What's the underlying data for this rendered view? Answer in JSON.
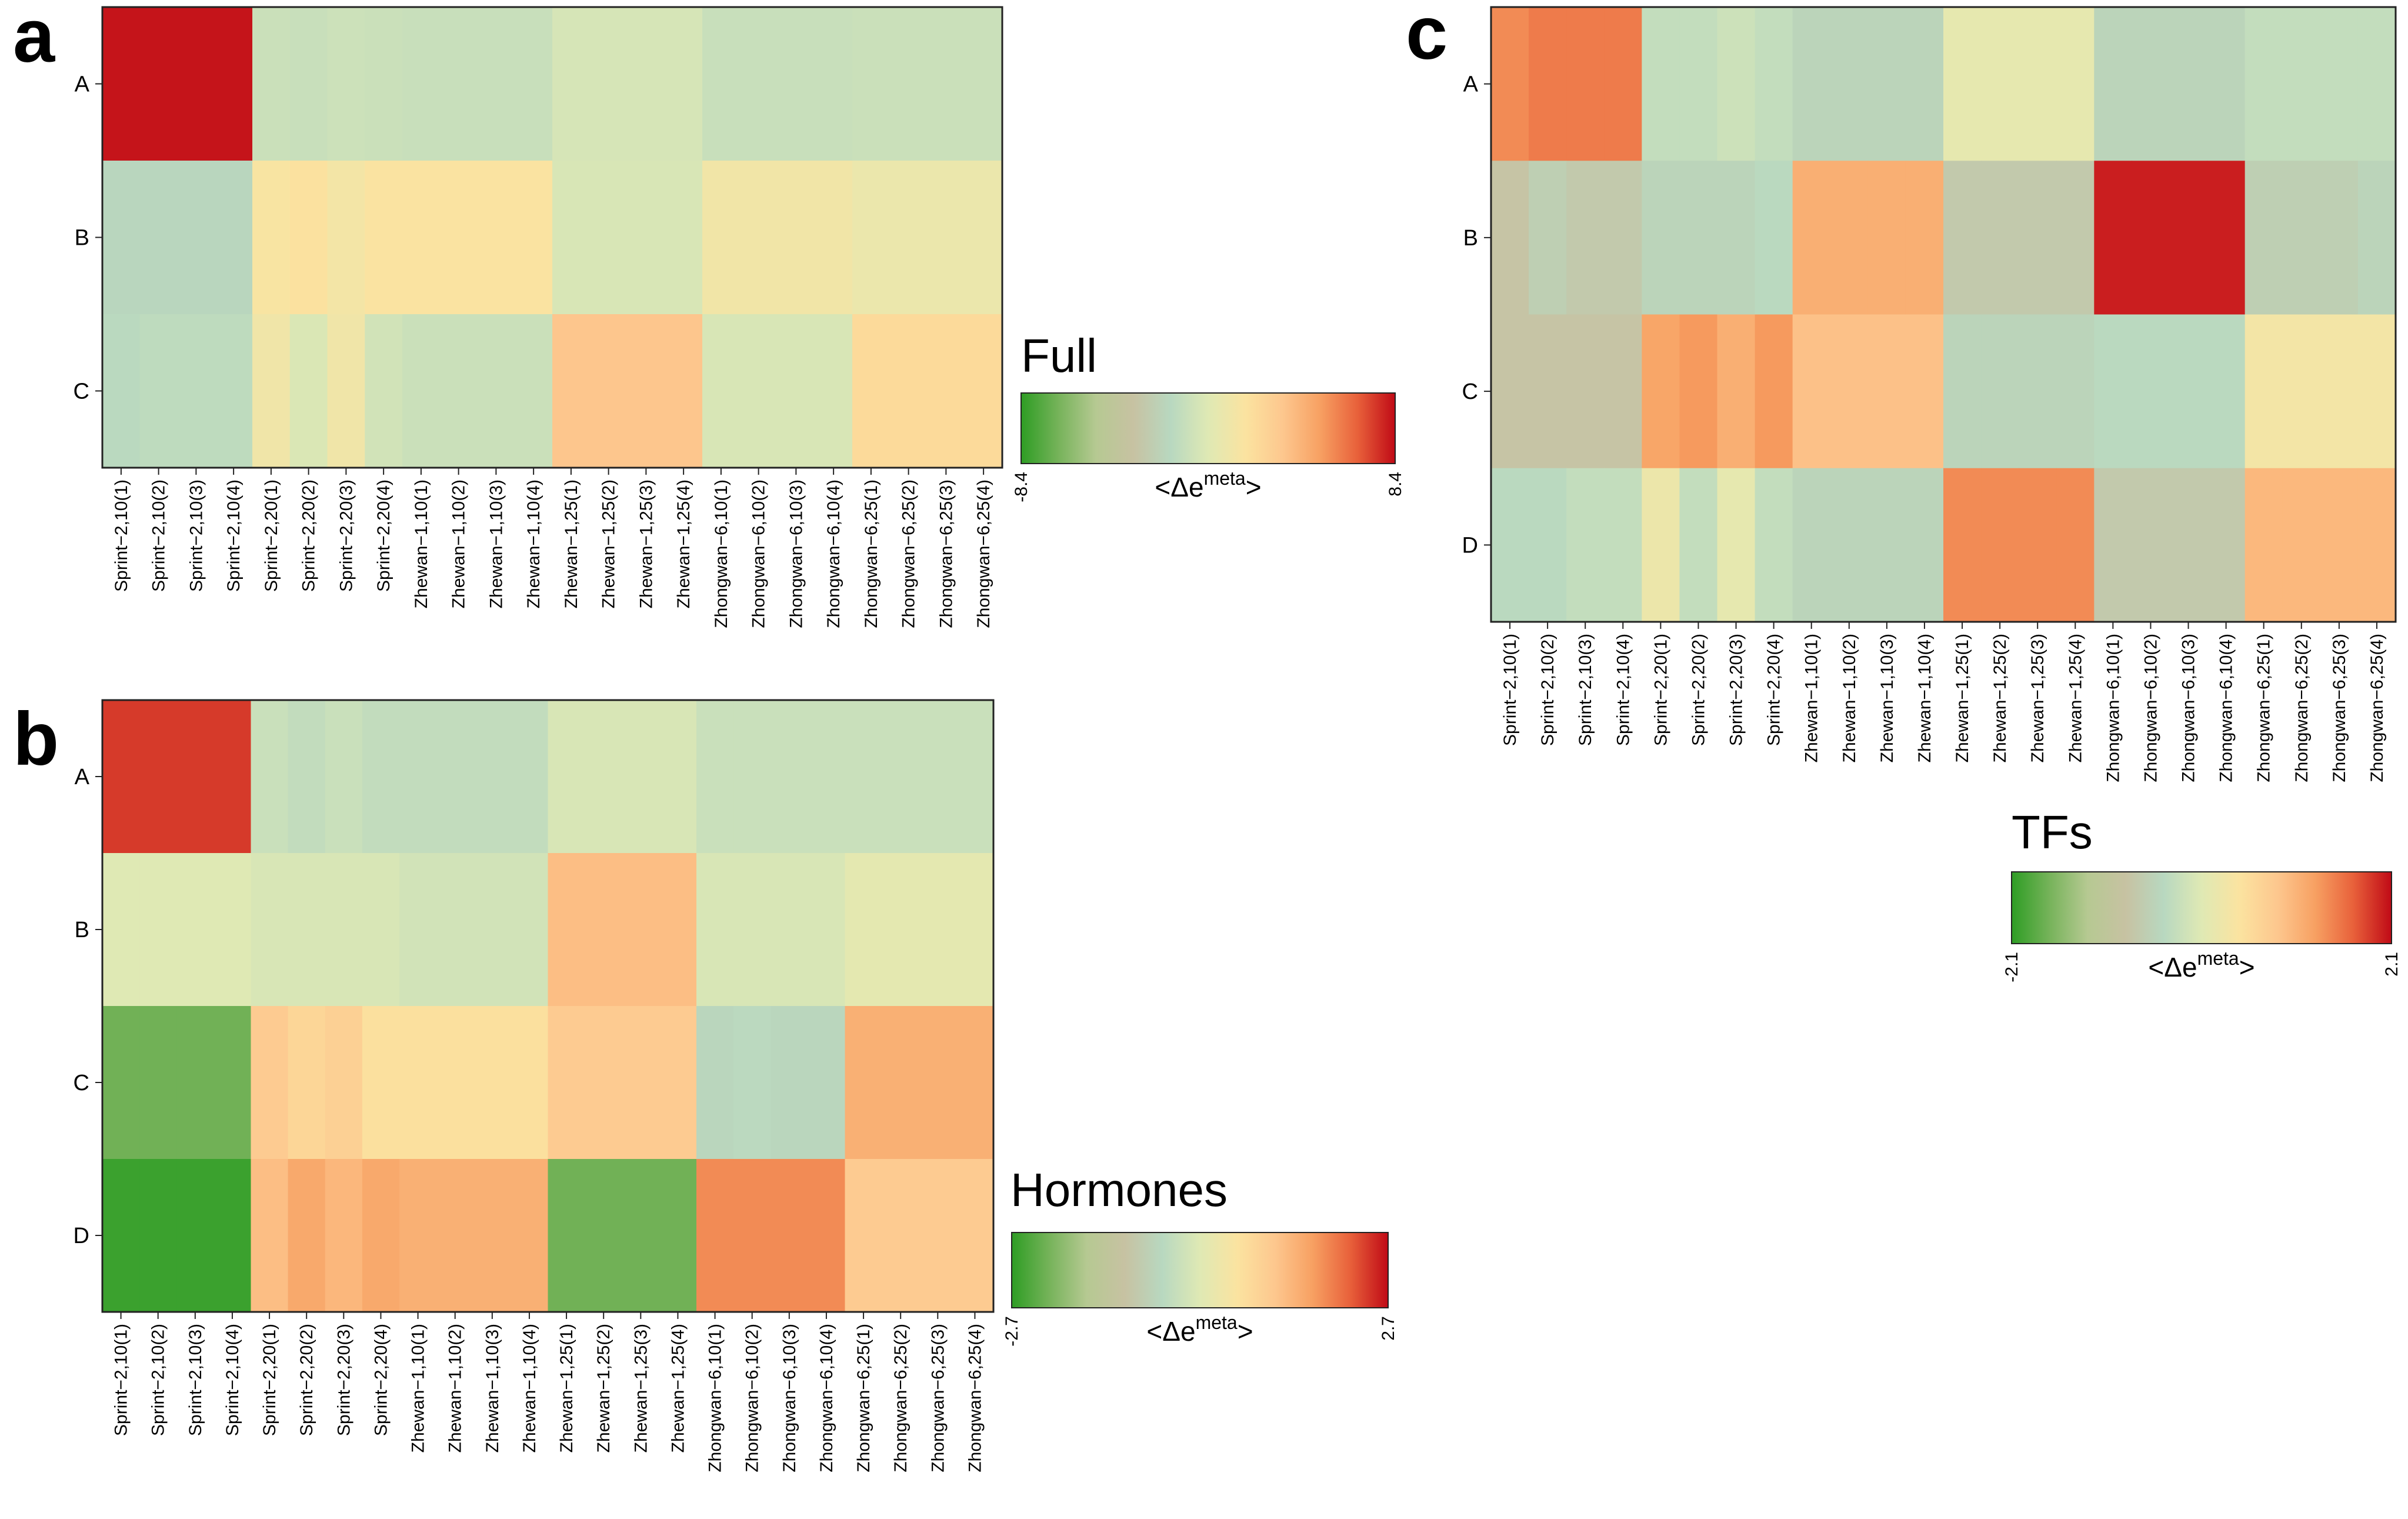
{
  "colors": {
    "low": "#2ca02c",
    "mid": "#d6e4b8",
    "high": "#c00a16",
    "scale": [
      "#2e9d24",
      "#76b35a",
      "#b6c992",
      "#c7c2a2",
      "#b8d8c0",
      "#dfe9b4",
      "#fbe3a0",
      "#fdc78e",
      "#f7a062",
      "#e8603a",
      "#c00a16"
    ]
  },
  "chart_data": [
    {
      "panel": "a",
      "type": "heatmap",
      "title": "Full",
      "legend": {
        "title": "Full",
        "label": "<Δe",
        "label_sup": "meta",
        "label_end": ">",
        "min": -8.4,
        "max": 8.4,
        "min_label": "-8.4",
        "max_label": "8.4"
      },
      "rows": [
        "A",
        "B",
        "C"
      ],
      "columns": [
        "Sprint−2,10(1)",
        "Sprint−2,10(2)",
        "Sprint−2,10(3)",
        "Sprint−2,10(4)",
        "Sprint−2,20(1)",
        "Sprint−2,20(2)",
        "Sprint−2,20(3)",
        "Sprint−2,20(4)",
        "Zhewan−1,10(1)",
        "Zhewan−1,10(2)",
        "Zhewan−1,10(3)",
        "Zhewan−1,10(4)",
        "Zhewan−1,25(1)",
        "Zhewan−1,25(2)",
        "Zhewan−1,25(3)",
        "Zhewan−1,25(4)",
        "Zhongwan−6,10(1)",
        "Zhongwan−6,10(2)",
        "Zhongwan−6,10(3)",
        "Zhongwan−6,10(4)",
        "Zhongwan−6,25(1)",
        "Zhongwan−6,25(2)",
        "Zhongwan−6,25(3)",
        "Zhongwan−6,25(4)"
      ],
      "values": [
        [
          8.2,
          8.2,
          8.2,
          8.2,
          -0.9,
          -1.0,
          -0.8,
          -0.9,
          -1.0,
          -1.0,
          -1.0,
          -1.0,
          -0.4,
          -0.4,
          -0.4,
          -0.4,
          -1.0,
          -1.0,
          -1.0,
          -1.0,
          -0.9,
          -0.9,
          -0.9,
          -0.9
        ],
        [
          -1.8,
          -1.8,
          -1.8,
          -1.8,
          1.5,
          1.8,
          1.2,
          1.6,
          1.6,
          1.6,
          1.6,
          1.6,
          -0.3,
          -0.3,
          -0.3,
          -0.3,
          1.1,
          1.1,
          1.1,
          1.1,
          0.7,
          0.7,
          0.7,
          0.7
        ],
        [
          -1.6,
          -1.4,
          -1.4,
          -1.4,
          1.0,
          -0.2,
          1.0,
          -0.6,
          -0.9,
          -0.9,
          -0.9,
          -0.9,
          3.4,
          3.4,
          3.4,
          3.4,
          -0.3,
          -0.3,
          -0.3,
          -0.3,
          2.2,
          2.2,
          2.2,
          2.2
        ]
      ]
    },
    {
      "panel": "b",
      "type": "heatmap",
      "title": "Hormones",
      "legend": {
        "title": "Hormones",
        "label": "<Δe",
        "label_sup": "meta",
        "label_end": ">",
        "min": -2.7,
        "max": 2.7,
        "min_label": "-2.7",
        "max_label": "2.7"
      },
      "rows": [
        "A",
        "B",
        "C",
        "D"
      ],
      "columns": [
        "Sprint−2,10(1)",
        "Sprint−2,10(2)",
        "Sprint−2,10(3)",
        "Sprint−2,10(4)",
        "Sprint−2,20(1)",
        "Sprint−2,20(2)",
        "Sprint−2,20(3)",
        "Sprint−2,20(4)",
        "Zhewan−1,10(1)",
        "Zhewan−1,10(2)",
        "Zhewan−1,10(3)",
        "Zhewan−1,10(4)",
        "Zhewan−1,25(1)",
        "Zhewan−1,25(2)",
        "Zhewan−1,25(3)",
        "Zhewan−1,25(4)",
        "Zhongwan−6,10(1)",
        "Zhongwan−6,10(2)",
        "Zhongwan−6,10(3)",
        "Zhongwan−6,10(4)",
        "Zhongwan−6,25(1)",
        "Zhongwan−6,25(2)",
        "Zhongwan−6,25(3)",
        "Zhongwan−6,25(4)"
      ],
      "values": [
        [
          2.4,
          2.4,
          2.4,
          2.4,
          -0.3,
          -0.4,
          -0.3,
          -0.4,
          -0.4,
          -0.4,
          -0.4,
          -0.4,
          -0.1,
          -0.1,
          -0.1,
          -0.1,
          -0.3,
          -0.3,
          -0.3,
          -0.3,
          -0.3,
          -0.3,
          -0.3,
          -0.3
        ],
        [
          0.0,
          0.0,
          0.0,
          0.0,
          -0.1,
          -0.1,
          -0.1,
          -0.1,
          -0.2,
          -0.2,
          -0.2,
          -0.2,
          1.2,
          1.2,
          1.2,
          1.2,
          -0.1,
          -0.1,
          -0.1,
          -0.1,
          0.1,
          0.1,
          0.1,
          0.1
        ],
        [
          -2.2,
          -2.2,
          -2.2,
          -2.2,
          1.0,
          0.8,
          0.9,
          0.6,
          0.6,
          0.6,
          0.6,
          0.6,
          1.0,
          1.0,
          1.0,
          1.0,
          -0.6,
          -0.5,
          -0.6,
          -0.6,
          1.4,
          1.4,
          1.4,
          1.4
        ],
        [
          -2.6,
          -2.6,
          -2.6,
          -2.6,
          1.2,
          1.5,
          1.3,
          1.5,
          1.4,
          1.4,
          1.4,
          1.4,
          -2.2,
          -2.2,
          -2.2,
          -2.2,
          1.8,
          1.8,
          1.8,
          1.8,
          1.0,
          1.0,
          1.0,
          1.0
        ]
      ]
    },
    {
      "panel": "c",
      "type": "heatmap",
      "title": "TFs",
      "legend": {
        "title": "TFs",
        "label": "<Δe",
        "label_sup": "meta",
        "label_end": ">",
        "min": -2.1,
        "max": 2.1,
        "min_label": "-2.1",
        "max_label": "2.1"
      },
      "rows": [
        "A",
        "B",
        "C",
        "D"
      ],
      "columns": [
        "Sprint−2,10(1)",
        "Sprint−2,10(2)",
        "Sprint−2,10(3)",
        "Sprint−2,10(4)",
        "Sprint−2,20(1)",
        "Sprint−2,20(2)",
        "Sprint−2,20(3)",
        "Sprint−2,20(4)",
        "Zhewan−1,10(1)",
        "Zhewan−1,10(2)",
        "Zhewan−1,10(3)",
        "Zhewan−1,10(4)",
        "Zhewan−1,25(1)",
        "Zhewan−1,25(2)",
        "Zhewan−1,25(3)",
        "Zhewan−1,25(4)",
        "Zhongwan−6,10(1)",
        "Zhongwan−6,10(2)",
        "Zhongwan−6,10(3)",
        "Zhongwan−6,10(4)",
        "Zhongwan−6,25(1)",
        "Zhongwan−6,25(2)",
        "Zhongwan−6,25(3)",
        "Zhongwan−6,25(4)"
      ],
      "values": [
        [
          1.4,
          1.5,
          1.5,
          1.5,
          -0.3,
          -0.3,
          -0.2,
          -0.3,
          -0.5,
          -0.5,
          -0.5,
          -0.5,
          0.1,
          0.1,
          0.1,
          0.1,
          -0.5,
          -0.5,
          -0.5,
          -0.5,
          -0.3,
          -0.3,
          -0.3,
          -0.3
        ],
        [
          -0.8,
          -0.6,
          -0.7,
          -0.7,
          -0.5,
          -0.5,
          -0.5,
          -0.4,
          1.1,
          1.1,
          1.1,
          1.1,
          -0.7,
          -0.7,
          -0.7,
          -0.7,
          2.0,
          2.0,
          2.0,
          2.0,
          -0.6,
          -0.6,
          -0.6,
          -0.5
        ],
        [
          -0.8,
          -0.8,
          -0.8,
          -0.8,
          1.2,
          1.3,
          1.1,
          1.3,
          0.9,
          0.9,
          0.9,
          0.9,
          -0.5,
          -0.5,
          -0.5,
          -0.5,
          -0.4,
          -0.4,
          -0.4,
          -0.4,
          0.3,
          0.3,
          0.3,
          0.3
        ],
        [
          -0.4,
          -0.4,
          -0.3,
          -0.3,
          0.2,
          -0.3,
          0.1,
          -0.3,
          -0.5,
          -0.5,
          -0.5,
          -0.5,
          1.4,
          1.4,
          1.4,
          1.4,
          -0.7,
          -0.7,
          -0.7,
          -0.7,
          1.0,
          1.0,
          1.0,
          1.0
        ]
      ]
    }
  ]
}
